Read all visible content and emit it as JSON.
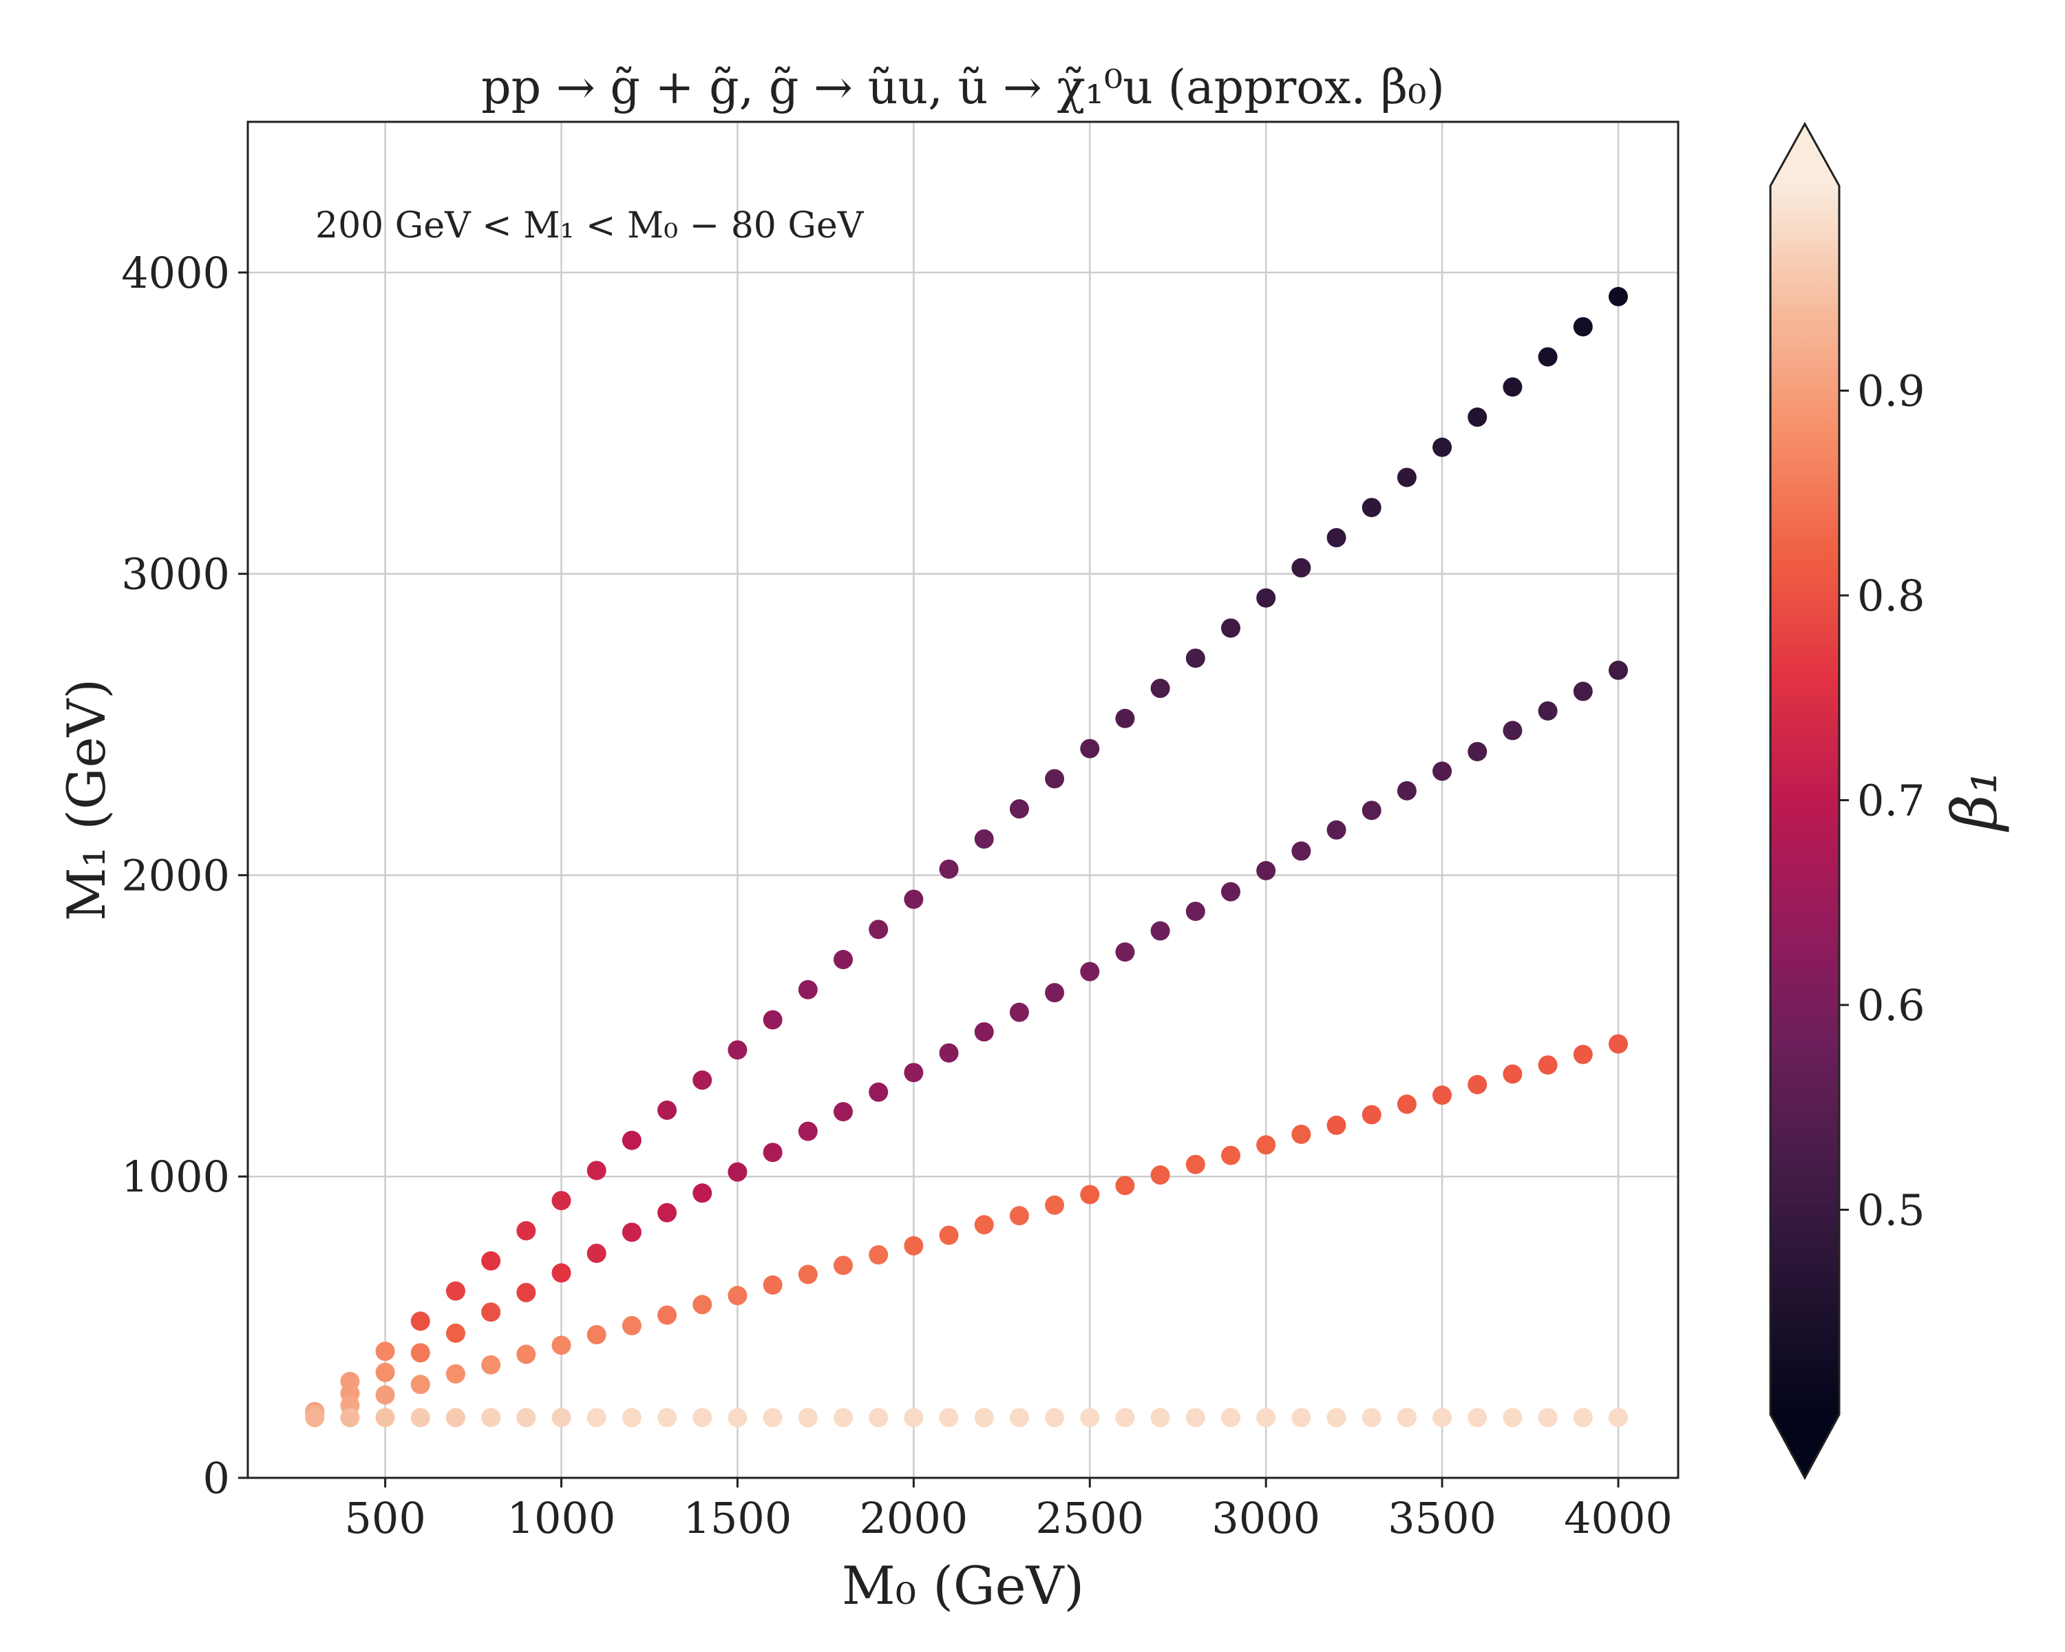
{
  "chart_data": {
    "type": "scatter",
    "title": "pp → g̃ + g̃, g̃ → ũu, ũ → χ̃₁⁰u (approx. β₀)",
    "annotation": "200 GeV < M₁ < M₀ − 80 GeV",
    "xlabel": "M₀ (GeV)",
    "ylabel": "M₁ (GeV)",
    "xlim": [
      110,
      4170
    ],
    "ylim": [
      0,
      4500
    ],
    "xticks": [
      500,
      1000,
      1500,
      2000,
      2500,
      3000,
      3500,
      4000
    ],
    "yticks": [
      0,
      1000,
      2000,
      3000,
      4000
    ],
    "grid": true,
    "colorbar": {
      "label": "β₁",
      "range": [
        0.4,
        1.0
      ],
      "ticks": [
        0.5,
        0.6,
        0.7,
        0.8,
        0.9
      ],
      "colormap": "rocket",
      "extend": "both"
    },
    "series": [
      {
        "x": [
          300,
          400,
          500,
          600,
          700,
          800,
          900,
          1000,
          1100,
          1200,
          1300,
          1400,
          1500,
          1600,
          1700,
          1800,
          1900,
          2000,
          2100,
          2200,
          2300,
          2400,
          2500,
          2600,
          2700,
          2800,
          2900,
          3000,
          3100,
          3200,
          3300,
          3400,
          3500,
          3600,
          3700,
          3800,
          3900,
          4000
        ],
        "y": [
          220,
          320,
          420,
          520,
          620,
          720,
          820,
          920,
          1020,
          1120,
          1220,
          1320,
          1420,
          1520,
          1620,
          1720,
          1820,
          1920,
          2020,
          2120,
          2220,
          2320,
          2420,
          2520,
          2620,
          2720,
          2820,
          2920,
          3020,
          3120,
          3220,
          3320,
          3420,
          3520,
          3620,
          3720,
          3820,
          3920
        ],
        "c": [
          0.9,
          0.9,
          0.87,
          0.8,
          0.78,
          0.76,
          0.75,
          0.74,
          0.72,
          0.7,
          0.68,
          0.67,
          0.65,
          0.64,
          0.63,
          0.62,
          0.61,
          0.6,
          0.59,
          0.58,
          0.57,
          0.56,
          0.55,
          0.54,
          0.53,
          0.52,
          0.51,
          0.5,
          0.5,
          0.49,
          0.48,
          0.48,
          0.47,
          0.46,
          0.45,
          0.44,
          0.43,
          0.42
        ]
      },
      {
        "x": [
          400,
          500,
          600,
          700,
          800,
          900,
          1000,
          1100,
          1200,
          1300,
          1400,
          1500,
          1600,
          1700,
          1800,
          1900,
          2000,
          2100,
          2200,
          2300,
          2400,
          2500,
          2600,
          2700,
          2800,
          2900,
          3000,
          3100,
          3200,
          3300,
          3400,
          3500,
          3600,
          3700,
          3800,
          3900,
          4000
        ],
        "y": [
          280,
          350,
          415,
          480,
          550,
          615,
          680,
          745,
          815,
          880,
          945,
          1015,
          1080,
          1150,
          1215,
          1280,
          1345,
          1410,
          1480,
          1545,
          1610,
          1680,
          1745,
          1815,
          1880,
          1945,
          2015,
          2080,
          2150,
          2215,
          2280,
          2345,
          2410,
          2480,
          2545,
          2610,
          2680
        ],
        "c": [
          0.9,
          0.88,
          0.85,
          0.82,
          0.8,
          0.78,
          0.76,
          0.74,
          0.72,
          0.71,
          0.7,
          0.68,
          0.67,
          0.66,
          0.65,
          0.64,
          0.63,
          0.62,
          0.62,
          0.61,
          0.6,
          0.6,
          0.59,
          0.58,
          0.58,
          0.57,
          0.56,
          0.56,
          0.55,
          0.55,
          0.54,
          0.54,
          0.53,
          0.53,
          0.52,
          0.52,
          0.51
        ]
      },
      {
        "x": [
          300,
          400,
          500,
          600,
          700,
          800,
          900,
          1000,
          1100,
          1200,
          1300,
          1400,
          1500,
          1600,
          1700,
          1800,
          1900,
          2000,
          2100,
          2200,
          2300,
          2400,
          2500,
          2600,
          2700,
          2800,
          2900,
          3000,
          3100,
          3200,
          3300,
          3400,
          3500,
          3600,
          3700,
          3800,
          3900,
          4000
        ],
        "y": [
          210,
          240,
          275,
          310,
          345,
          375,
          410,
          440,
          475,
          505,
          540,
          575,
          605,
          640,
          675,
          705,
          740,
          770,
          805,
          840,
          870,
          905,
          940,
          970,
          1005,
          1040,
          1070,
          1105,
          1140,
          1170,
          1205,
          1240,
          1270,
          1305,
          1340,
          1370,
          1405,
          1440
        ],
        "c": [
          0.92,
          0.91,
          0.9,
          0.89,
          0.88,
          0.88,
          0.87,
          0.87,
          0.86,
          0.86,
          0.85,
          0.85,
          0.85,
          0.84,
          0.84,
          0.84,
          0.84,
          0.83,
          0.83,
          0.83,
          0.83,
          0.83,
          0.82,
          0.82,
          0.82,
          0.82,
          0.82,
          0.82,
          0.82,
          0.81,
          0.81,
          0.81,
          0.81,
          0.81,
          0.81,
          0.81,
          0.81,
          0.81
        ]
      },
      {
        "x": [
          300,
          400,
          500,
          600,
          700,
          800,
          900,
          1000,
          1100,
          1200,
          1300,
          1400,
          1500,
          1600,
          1700,
          1800,
          1900,
          2000,
          2100,
          2200,
          2300,
          2400,
          2500,
          2600,
          2700,
          2800,
          2900,
          3000,
          3100,
          3200,
          3300,
          3400,
          3500,
          3600,
          3700,
          3800,
          3900,
          4000
        ],
        "y": [
          200,
          200,
          200,
          200,
          200,
          200,
          200,
          200,
          200,
          200,
          200,
          200,
          200,
          200,
          200,
          200,
          200,
          200,
          200,
          200,
          200,
          200,
          200,
          200,
          200,
          200,
          200,
          200,
          200,
          200,
          200,
          200,
          200,
          200,
          200,
          200,
          200,
          200
        ],
        "c": [
          0.93,
          0.94,
          0.95,
          0.96,
          0.96,
          0.97,
          0.97,
          0.97,
          0.98,
          0.98,
          0.98,
          0.98,
          0.98,
          0.98,
          0.98,
          0.98,
          0.98,
          0.98,
          0.98,
          0.98,
          0.98,
          0.98,
          0.98,
          0.98,
          0.98,
          0.98,
          0.98,
          0.98,
          0.98,
          0.98,
          0.98,
          0.98,
          0.98,
          0.98,
          0.98,
          0.98,
          0.98,
          0.98
        ]
      }
    ]
  }
}
